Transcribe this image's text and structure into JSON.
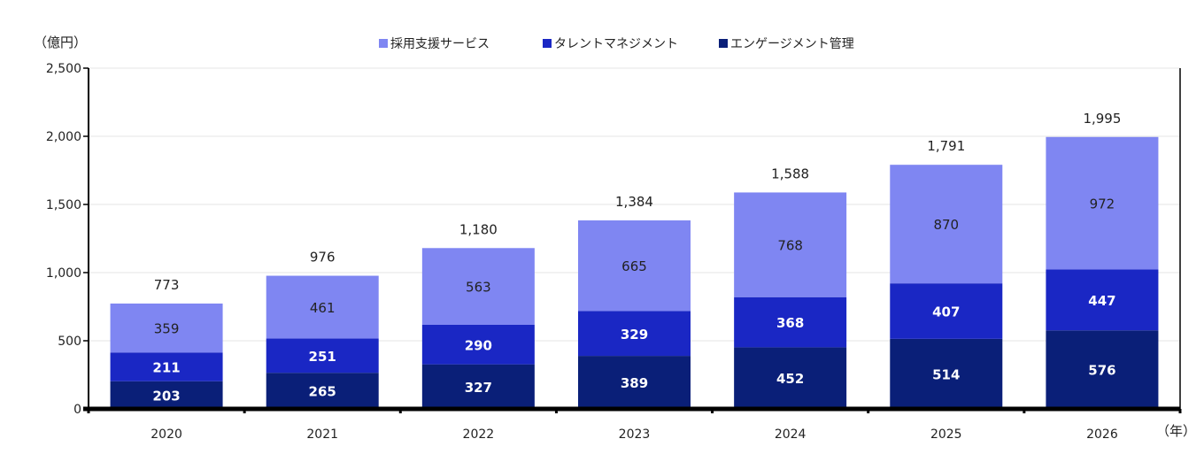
{
  "chart_data": {
    "type": "bar",
    "stacked": true,
    "categories": [
      "2020",
      "2021",
      "2022",
      "2023",
      "2024",
      "2025",
      "2026"
    ],
    "series": [
      {
        "name": "エンゲージメント管理",
        "values": [
          203,
          265,
          327,
          389,
          452,
          514,
          576
        ],
        "color": "#0a1f78"
      },
      {
        "name": "タレントマネジメント",
        "values": [
          211,
          251,
          290,
          329,
          368,
          407,
          447
        ],
        "color": "#1a27c4"
      },
      {
        "name": "採用支援サービス",
        "values": [
          359,
          461,
          563,
          665,
          768,
          870,
          972
        ],
        "color": "#7f86f2"
      }
    ],
    "totals": [
      "773",
      "976",
      "1,180",
      "1,384",
      "1,588",
      "1,791",
      "1,995"
    ],
    "legend_order": [
      2,
      1,
      0
    ],
    "y_unit": "（億円）",
    "x_unit": "（年）",
    "ylim": [
      0,
      2500
    ],
    "yticks": [
      0,
      500,
      1000,
      1500,
      2000,
      2500
    ],
    "ytick_labels": [
      "0",
      "500",
      "1,000",
      "1,500",
      "2,000",
      "2,500"
    ],
    "legend_position": "top-center",
    "grid": true
  }
}
